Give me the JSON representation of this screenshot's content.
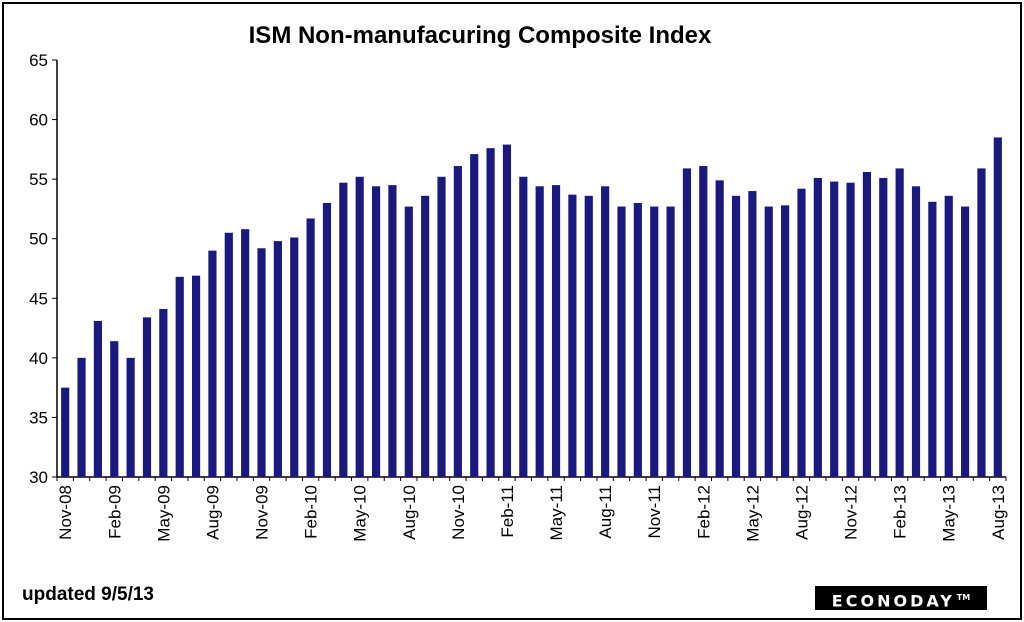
{
  "chart_data": {
    "type": "bar",
    "title": "ISM Non-manufacuring  Composite  Index",
    "xlabel": "",
    "ylabel": "",
    "ylim": [
      30,
      65
    ],
    "yticks": [
      30,
      35,
      40,
      45,
      50,
      55,
      60,
      65
    ],
    "grid": false,
    "bar_color": "#1a1a7e",
    "categories": [
      "Nov-08",
      "Dec-08",
      "Jan-09",
      "Feb-09",
      "Mar-09",
      "Apr-09",
      "May-09",
      "Jun-09",
      "Jul-09",
      "Aug-09",
      "Sep-09",
      "Oct-09",
      "Nov-09",
      "Dec-09",
      "Jan-10",
      "Feb-10",
      "Mar-10",
      "Apr-10",
      "May-10",
      "Jun-10",
      "Jul-10",
      "Aug-10",
      "Sep-10",
      "Oct-10",
      "Nov-10",
      "Dec-10",
      "Jan-11",
      "Feb-11",
      "Mar-11",
      "Apr-11",
      "May-11",
      "Jun-11",
      "Jul-11",
      "Aug-11",
      "Sep-11",
      "Oct-11",
      "Nov-11",
      "Dec-11",
      "Jan-12",
      "Feb-12",
      "Mar-12",
      "Apr-12",
      "May-12",
      "Jun-12",
      "Jul-12",
      "Aug-12",
      "Sep-12",
      "Oct-12",
      "Nov-12",
      "Dec-12",
      "Jan-13",
      "Feb-13",
      "Mar-13",
      "Apr-13",
      "May-13",
      "Jun-13",
      "Jul-13",
      "Aug-13"
    ],
    "tick_labels": [
      "Nov-08",
      "Feb-09",
      "May-09",
      "Aug-09",
      "Nov-09",
      "Feb-10",
      "May-10",
      "Aug-10",
      "Nov-10",
      "Feb-11",
      "May-11",
      "Aug-11",
      "Nov-11",
      "Feb-12",
      "May-12",
      "Aug-12",
      "Nov-12",
      "Feb-13",
      "May-13",
      "Aug-13"
    ],
    "values": [
      37.5,
      40.0,
      43.1,
      41.4,
      40.0,
      43.4,
      44.1,
      46.8,
      46.9,
      49.0,
      50.5,
      50.8,
      49.2,
      49.8,
      50.1,
      51.7,
      53.0,
      54.7,
      55.2,
      54.4,
      54.5,
      52.7,
      53.6,
      55.2,
      56.1,
      57.1,
      57.6,
      57.9,
      55.2,
      54.4,
      54.5,
      53.7,
      53.6,
      54.4,
      52.7,
      53.0,
      52.7,
      52.7,
      55.9,
      56.1,
      54.9,
      53.6,
      54.0,
      52.7,
      52.8,
      54.2,
      55.1,
      54.8,
      54.7,
      55.6,
      55.1,
      55.9,
      54.4,
      53.1,
      53.6,
      52.7,
      55.9,
      58.5
    ]
  },
  "footer": {
    "updated": "updated 9/5/13",
    "brand": "ECONODAY",
    "brand_tm": "TM"
  }
}
